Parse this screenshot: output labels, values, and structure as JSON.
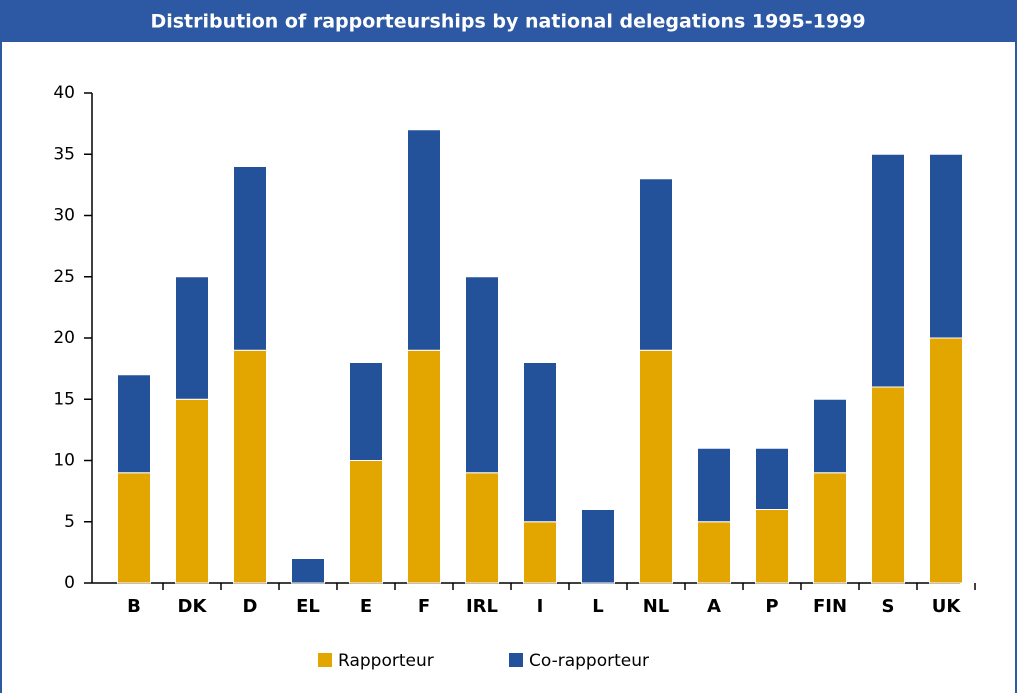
{
  "chart_data": {
    "type": "stacked_bar",
    "title": "Distribution of rapporteurships by national delegations 1995-1999",
    "categories": [
      "B",
      "DK",
      "D",
      "EL",
      "E",
      "F",
      "IRL",
      "I",
      "L",
      "NL",
      "A",
      "P",
      "FIN",
      "S",
      "UK"
    ],
    "series": [
      {
        "name": "Rapporteur",
        "color": "#e3a600",
        "values": [
          9,
          15,
          19,
          0,
          10,
          19,
          9,
          5,
          0,
          19,
          5,
          6,
          9,
          16,
          20
        ]
      },
      {
        "name": "Co-rapporteur",
        "color": "#23529b",
        "values": [
          8,
          10,
          15,
          2,
          8,
          18,
          16,
          13,
          6,
          14,
          6,
          5,
          6,
          19,
          15
        ]
      }
    ],
    "ylim": [
      0,
      40
    ],
    "yticks": [
      0,
      5,
      10,
      15,
      20,
      25,
      30,
      35,
      40
    ],
    "grid": false
  }
}
